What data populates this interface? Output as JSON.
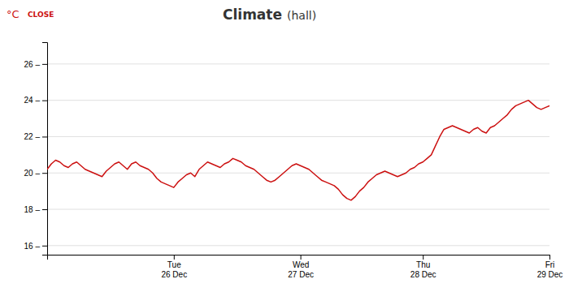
{
  "chart_data": {
    "type": "line",
    "title": "Climate",
    "subtitle": "(hall)",
    "ylabel": "°C",
    "annotations": [
      "CLOSE"
    ],
    "color": "#cc1111",
    "grid": true,
    "ylim": [
      15.5,
      27.2
    ],
    "yticks": [
      {
        "value": 16,
        "label": "16 –"
      },
      {
        "value": 18,
        "label": "18 –"
      },
      {
        "value": 20,
        "label": "20 –"
      },
      {
        "value": 22,
        "label": "22 –"
      },
      {
        "value": 24,
        "label": "24 –"
      },
      {
        "value": 26,
        "label": "26 –"
      }
    ],
    "categories": [
      null,
      null,
      null,
      null,
      null,
      null,
      null,
      null,
      null,
      null,
      null,
      null,
      null,
      null,
      null,
      null,
      null,
      null,
      null,
      null,
      null,
      null,
      null,
      null,
      null,
      null,
      null,
      null,
      null,
      null,
      "Tue\n26 Dec",
      null,
      null,
      null,
      null,
      null,
      null,
      null,
      null,
      null,
      null,
      null,
      null,
      null,
      null,
      null,
      null,
      null,
      null,
      null,
      null,
      null,
      null,
      null,
      null,
      null,
      null,
      null,
      null,
      null,
      "Wed\n27 Dec",
      null,
      null,
      null,
      null,
      null,
      null,
      null,
      null,
      null,
      null,
      null,
      null,
      null,
      null,
      null,
      null,
      null,
      null,
      null,
      null,
      null,
      null,
      null,
      null,
      null,
      null,
      null,
      null,
      "Thu\n28 Dec",
      null,
      null,
      null,
      null,
      null,
      null,
      null,
      null,
      null,
      null,
      null,
      null,
      null,
      null,
      null,
      null,
      null,
      null,
      null,
      null,
      null,
      null,
      null,
      null,
      null,
      null,
      null,
      null,
      null,
      "Fri\n29 Dec"
    ],
    "values": [
      20.2,
      20.5,
      20.7,
      20.6,
      20.4,
      20.3,
      20.5,
      20.6,
      20.4,
      20.2,
      20.1,
      20.0,
      19.9,
      19.8,
      20.1,
      20.3,
      20.5,
      20.6,
      20.4,
      20.2,
      20.5,
      20.6,
      20.4,
      20.3,
      20.2,
      20.0,
      19.7,
      19.5,
      19.4,
      19.3,
      19.2,
      19.5,
      19.7,
      19.9,
      20.0,
      19.8,
      20.2,
      20.4,
      20.6,
      20.5,
      20.4,
      20.3,
      20.5,
      20.6,
      20.8,
      20.7,
      20.6,
      20.4,
      20.3,
      20.2,
      20.0,
      19.8,
      19.6,
      19.5,
      19.6,
      19.8,
      20.0,
      20.2,
      20.4,
      20.5,
      20.4,
      20.3,
      20.2,
      20.0,
      19.8,
      19.6,
      19.5,
      19.4,
      19.3,
      19.1,
      18.8,
      18.6,
      18.5,
      18.7,
      19.0,
      19.2,
      19.5,
      19.7,
      19.9,
      20.0,
      20.1,
      20.0,
      19.9,
      19.8,
      19.9,
      20.0,
      20.2,
      20.3,
      20.5,
      20.6,
      20.8,
      21.0,
      21.5,
      22.0,
      22.4,
      22.5,
      22.6,
      22.5,
      22.4,
      22.3,
      22.2,
      22.4,
      22.5,
      22.3,
      22.2,
      22.5,
      22.6,
      22.8,
      23.0,
      23.2,
      23.5,
      23.7,
      23.8,
      23.9,
      24.0,
      23.8,
      23.6,
      23.5,
      23.6,
      23.7
    ]
  }
}
